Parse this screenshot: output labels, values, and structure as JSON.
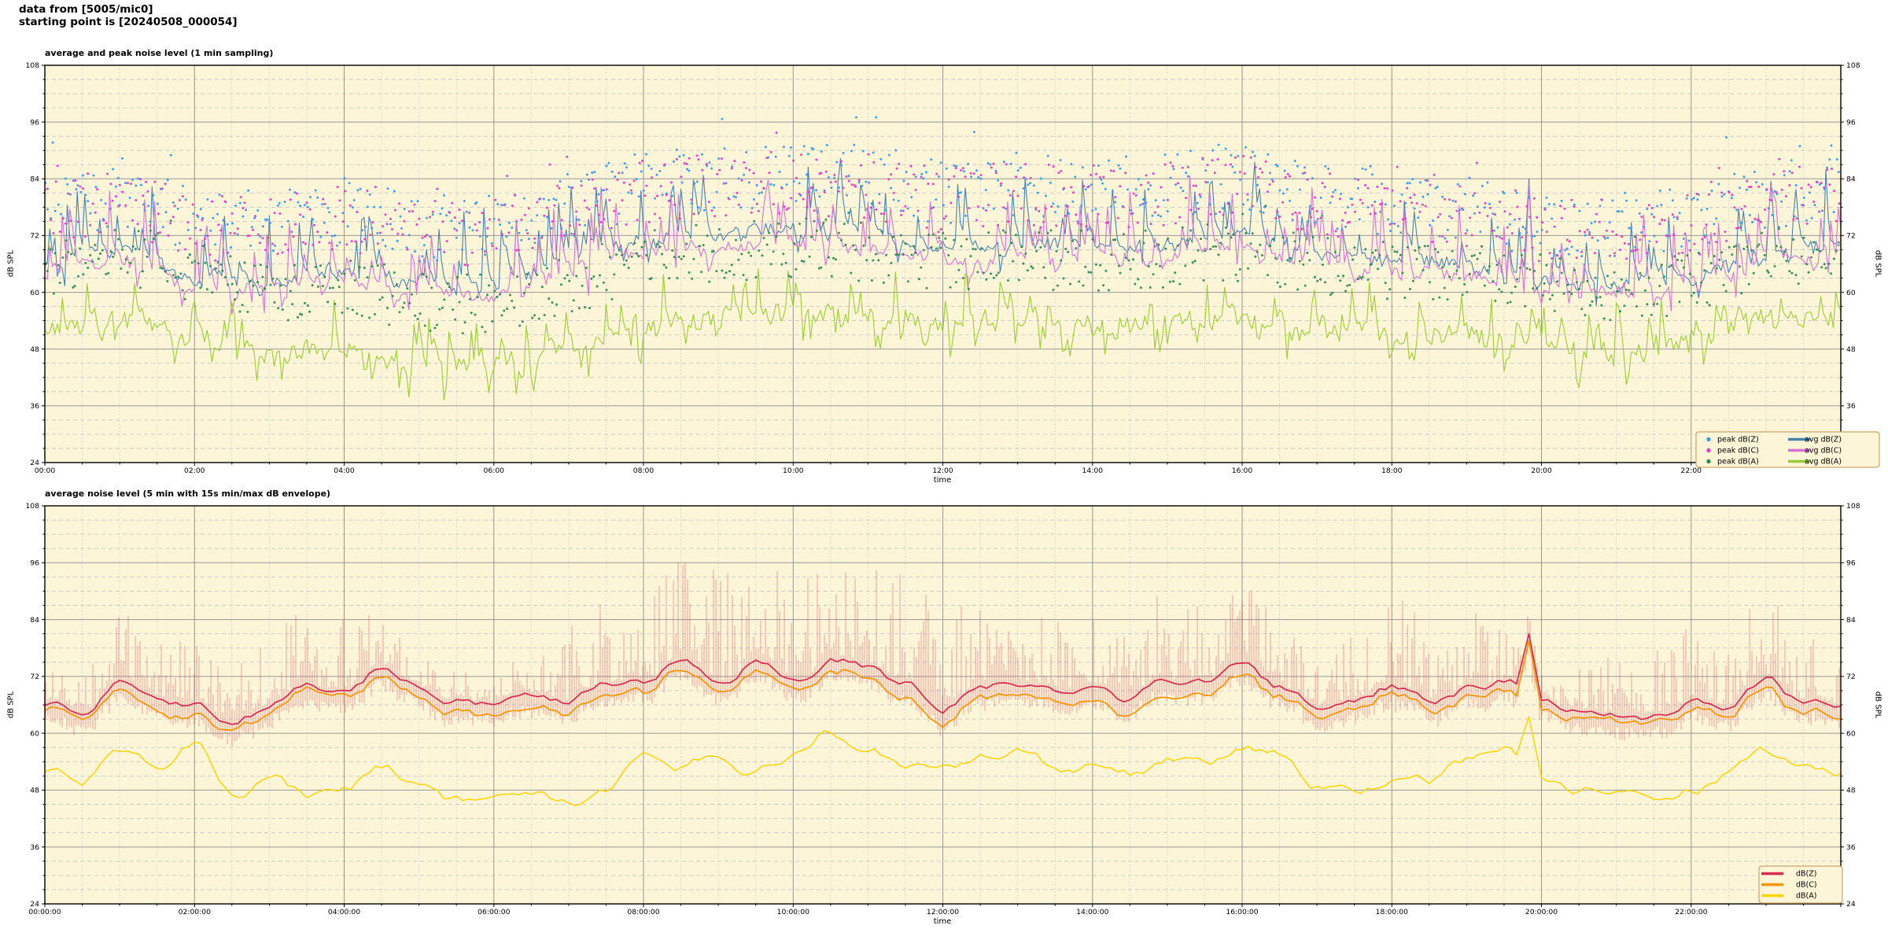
{
  "header": {
    "line1": "data from [5005/mic0]",
    "line2": "starting point is [20240508_000054]"
  },
  "colors": {
    "figure_bg": "#ffffff",
    "axes_bg": "#fcf5d7",
    "grid_major": "#979797",
    "grid_minor": "#c6c6c6",
    "spine": "#000000",
    "tick_text": "#000000",
    "legend_bg": "#fcf5d7",
    "legend_border": "#cfa268"
  },
  "chart_data": [
    {
      "type": "line+scatter",
      "title": "average and peak noise level (1 min sampling)",
      "xlabel": "time",
      "ylabel_left": "dB SPL",
      "ylabel_right": "dB SPL",
      "ylim": [
        24,
        108
      ],
      "yticks": [
        24,
        36,
        48,
        60,
        72,
        84,
        96,
        108
      ],
      "y_minor_step_db": 3,
      "x_range_hours": [
        0,
        24
      ],
      "x_major_step_hours": 2,
      "x_minor_step_hours": 0.5,
      "xtick_labels": [
        "00:00",
        "02:00",
        "04:00",
        "06:00",
        "08:00",
        "10:00",
        "12:00",
        "14:00",
        "16:00",
        "18:00",
        "20:00",
        "22:00"
      ],
      "grid": true,
      "sampling_step_minutes": 2,
      "series": [
        {
          "name": "avg dB(Z)",
          "kind": "line",
          "color": "#4682b4",
          "width": 1.1,
          "seed": 101,
          "hourly_db": [
            65.5,
            69,
            62.5,
            63,
            65,
            61.5,
            61.5,
            66.5,
            71,
            72,
            73,
            72,
            69,
            70.5,
            69.5,
            70.5,
            72,
            68,
            67,
            65.5,
            62.5,
            62,
            63,
            68.5,
            70
          ],
          "jitter_db": 1.3,
          "spike_prob": 0.16,
          "spike_db": [
            4,
            16
          ],
          "dip_prob": 0.05,
          "dip_db": [
            2,
            5
          ]
        },
        {
          "name": "avg dB(C)",
          "kind": "line",
          "color": "#da70d6",
          "width": 1.1,
          "seed": 202,
          "hourly_db": [
            63.5,
            67,
            60.5,
            61,
            63,
            59.5,
            59.5,
            64.5,
            68.5,
            69.5,
            70.5,
            69.5,
            66.5,
            68,
            67,
            68,
            69.5,
            65.5,
            64.5,
            63.5,
            60.5,
            60,
            61,
            66.5,
            68
          ],
          "jitter_db": 1.3,
          "spike_prob": 0.16,
          "spike_db": [
            4,
            16
          ],
          "dip_prob": 0.08,
          "dip_db": [
            2,
            5
          ]
        },
        {
          "name": "avg dB(A)",
          "kind": "line",
          "color": "#9acd32",
          "width": 1.1,
          "seed": 303,
          "hourly_db": [
            51.5,
            54.5,
            51,
            46.5,
            48.5,
            44.5,
            44,
            47.5,
            53,
            55,
            56,
            55,
            53,
            54,
            53,
            54,
            55,
            52.5,
            51.5,
            51.5,
            49.5,
            46.5,
            48.5,
            54.5,
            53.5
          ],
          "jitter_db": 2.0,
          "spike_prob": 0.13,
          "spike_db": [
            3,
            10
          ],
          "dip_prob": 0.12,
          "dip_db": [
            3,
            7
          ]
        },
        {
          "name": "peak dB(Z)",
          "kind": "scatter",
          "color": "#3d9ae8",
          "seed": 404,
          "base_series": 0,
          "offset_db": [
            5,
            19
          ],
          "outlier_prob": 0.06,
          "outlier_extra_db": 9,
          "max_db": 97,
          "step_minutes": 2,
          "dot_radius": 1.5
        },
        {
          "name": "peak dB(C)",
          "kind": "scatter",
          "color": "#e83bc6",
          "seed": 505,
          "base_series": 1,
          "offset_db": [
            6,
            20
          ],
          "outlier_prob": 0.06,
          "outlier_extra_db": 9,
          "max_db": 97,
          "step_minutes": 2,
          "dot_radius": 1.5
        },
        {
          "name": "peak dB(A)",
          "kind": "scatter",
          "color": "#2e8b57",
          "seed": 606,
          "base_series": 2,
          "offset_db": [
            7,
            20
          ],
          "outlier_prob": 0.05,
          "outlier_extra_db": 8,
          "max_db": 90,
          "step_minutes": 2,
          "dot_radius": 1.5
        }
      ],
      "events": [
        {
          "series": "avg dB(Z)",
          "t_hours": 19.83,
          "db": 84
        },
        {
          "series": "avg dB(C)",
          "t_hours": 19.83,
          "db": 83
        },
        {
          "series": "avg dB(Z)",
          "t_hours": 23.05,
          "db": 83.5
        },
        {
          "series": "avg dB(C)",
          "t_hours": 23.05,
          "db": 82.5
        }
      ],
      "legend": {
        "position": "lower right",
        "columns": 2,
        "entries": [
          {
            "label": "peak dB(Z)",
            "marker": "dot",
            "color": "#3d9ae8"
          },
          {
            "label": "peak dB(C)",
            "marker": "dot",
            "color": "#e83bc6"
          },
          {
            "label": "peak dB(A)",
            "marker": "dot",
            "color": "#2e8b57"
          },
          {
            "label": "avg dB(Z)",
            "marker": "line",
            "color": "#4682b4"
          },
          {
            "label": "avg dB(C)",
            "marker": "line",
            "color": "#da70d6"
          },
          {
            "label": "avg dB(A)",
            "marker": "line",
            "color": "#9acd32"
          }
        ]
      }
    },
    {
      "type": "line+envelope",
      "title": "average noise level (5 min with 15s min/max dB envelope)",
      "xlabel": "time",
      "ylabel_left": "dB SPL",
      "ylabel_right": "dB SPL",
      "ylim": [
        24,
        108
      ],
      "yticks": [
        24,
        36,
        48,
        60,
        72,
        84,
        96,
        108
      ],
      "y_minor_step_db": 3,
      "x_range_hours": [
        0,
        24
      ],
      "x_major_step_hours": 2,
      "x_minor_step_hours": 0.5,
      "xtick_labels": [
        "00:00:00",
        "02:00:00",
        "04:00:00",
        "06:00:00",
        "08:00:00",
        "10:00:00",
        "12:00:00",
        "14:00:00",
        "16:00:00",
        "18:00:00",
        "20:00:00",
        "22:00:00"
      ],
      "grid": true,
      "sampling_step_minutes": 5,
      "envelope": {
        "label": "15s min/max dB envelope",
        "color": "#dc143c",
        "opacity": 0.27,
        "seed": 707,
        "amp_hourly_db": [
          6,
          16,
          14,
          16,
          16,
          8,
          5,
          16,
          20,
          24,
          24,
          24,
          24,
          14,
          18,
          18,
          20,
          10,
          20,
          18,
          5,
          14,
          18,
          18,
          10
        ],
        "below_db": [
          2.2,
          5
        ],
        "max_db": 96
      },
      "series": [
        {
          "name": "dB(Z)",
          "kind": "line",
          "color": "#d62a4e",
          "width": 1.7,
          "seed": 808,
          "walk_db": 0.8,
          "half_hourly_db": [
            65.5,
            64.5,
            70.5,
            67,
            66,
            63.5,
            66,
            71.5,
            69,
            74,
            70,
            67.5,
            66,
            68.5,
            66,
            71,
            70.5,
            76,
            72,
            75.5,
            72.5,
            76.5,
            74.5,
            71,
            66.5,
            70.5,
            72,
            69.5,
            71.5,
            68,
            71,
            71.5,
            74,
            69,
            66,
            66.5,
            69.5,
            67,
            70,
            71.5,
            65.5,
            64.5,
            64.5,
            64,
            66.5,
            65.5,
            71,
            66.5,
            66
          ]
        },
        {
          "name": "dB(C)",
          "kind": "line-derived",
          "color": "#f79500",
          "width": 1.7,
          "seed": 909,
          "walk_db": 0.45,
          "derive_from": "dB(Z)",
          "gap_hourly_db": [
            1.5,
            1.5,
            1.8,
            2,
            2,
            2,
            2,
            2,
            2.5,
            2.5,
            2.5,
            2.5,
            2.5,
            2.5,
            2.5,
            2.5,
            2.5,
            2,
            2,
            2,
            1.8,
            1.8,
            1.8,
            2,
            1.8
          ]
        },
        {
          "name": "dB(A)",
          "kind": "line",
          "color": "#ffd400",
          "width": 1.5,
          "seed": 1010,
          "walk_db": 0.9,
          "half_hourly_db": [
            52,
            50,
            57,
            53.5,
            58.5,
            48,
            50,
            46.5,
            47.5,
            52.5,
            48.5,
            45.5,
            45,
            46.5,
            45.5,
            49.5,
            54,
            52,
            55,
            52.5,
            56,
            61.5,
            57,
            54.5,
            52,
            55,
            56.5,
            53,
            54,
            51.5,
            55,
            54,
            58,
            55.5,
            50,
            49.5,
            51,
            50,
            54,
            57,
            50,
            48,
            46.5,
            46,
            48.5,
            52,
            55.5,
            54.5,
            53
          ]
        }
      ],
      "events": [
        {
          "series": "dB(Z)",
          "t_hours": 19.85,
          "db": 81
        },
        {
          "series": "dB(C)",
          "t_hours": 19.85,
          "db": 79.5
        },
        {
          "series": "dB(A)",
          "t_hours": 19.85,
          "db": 63.5
        }
      ],
      "legend": {
        "position": "lower right",
        "columns": 1,
        "entries": [
          {
            "label": "dB(Z)",
            "marker": "line",
            "color": "#d62a4e"
          },
          {
            "label": "dB(C)",
            "marker": "line",
            "color": "#f79500"
          },
          {
            "label": "dB(A)",
            "marker": "line",
            "color": "#ffd400"
          }
        ]
      }
    }
  ]
}
